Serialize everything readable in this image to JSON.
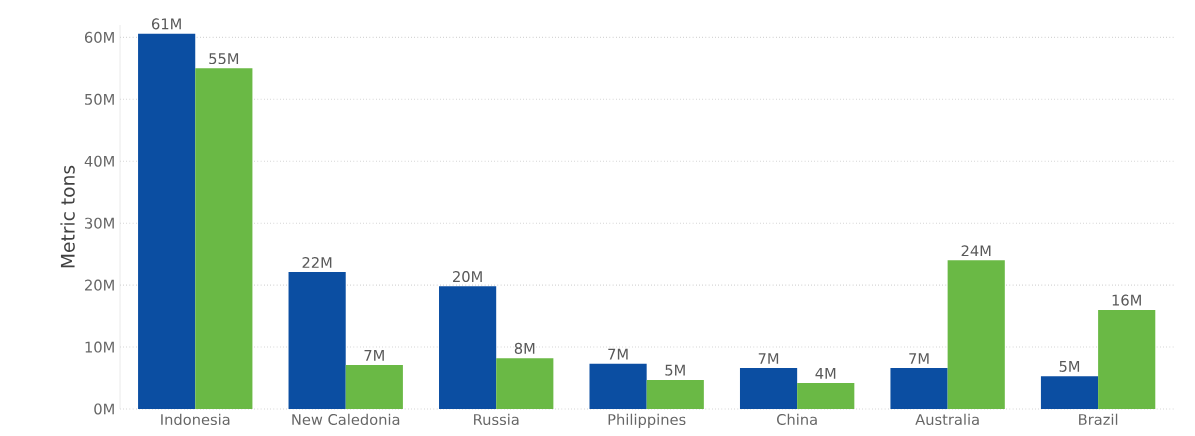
{
  "chart_data": {
    "type": "bar",
    "ylabel": "Metric tons",
    "categories": [
      "Indonesia",
      "New Caledonia",
      "Russia",
      "Philippines",
      "China",
      "Australia",
      "Brazil"
    ],
    "series": [
      {
        "color": "#0b4ea2",
        "values": [
          60.6,
          22.1,
          19.8,
          7.3,
          6.6,
          6.6,
          5.3
        ],
        "value_labels": [
          "61M",
          "22M",
          "20M",
          "7M",
          "7M",
          "7M",
          "5M"
        ]
      },
      {
        "color": "#6ab945",
        "values": [
          55.0,
          7.1,
          8.2,
          4.7,
          4.2,
          24.0,
          16.0
        ],
        "value_labels": [
          "55M",
          "7M",
          "8M",
          "5M",
          "4M",
          "24M",
          "16M"
        ]
      }
    ],
    "ylim": [
      0,
      62
    ],
    "yticks": [
      {
        "value": 0,
        "label": "0M"
      },
      {
        "value": 10,
        "label": "10M"
      },
      {
        "value": 20,
        "label": "20M"
      },
      {
        "value": 30,
        "label": "30M"
      },
      {
        "value": 40,
        "label": "40M"
      },
      {
        "value": 50,
        "label": "50M"
      },
      {
        "value": 60,
        "label": "60M"
      }
    ],
    "grid": "y"
  }
}
